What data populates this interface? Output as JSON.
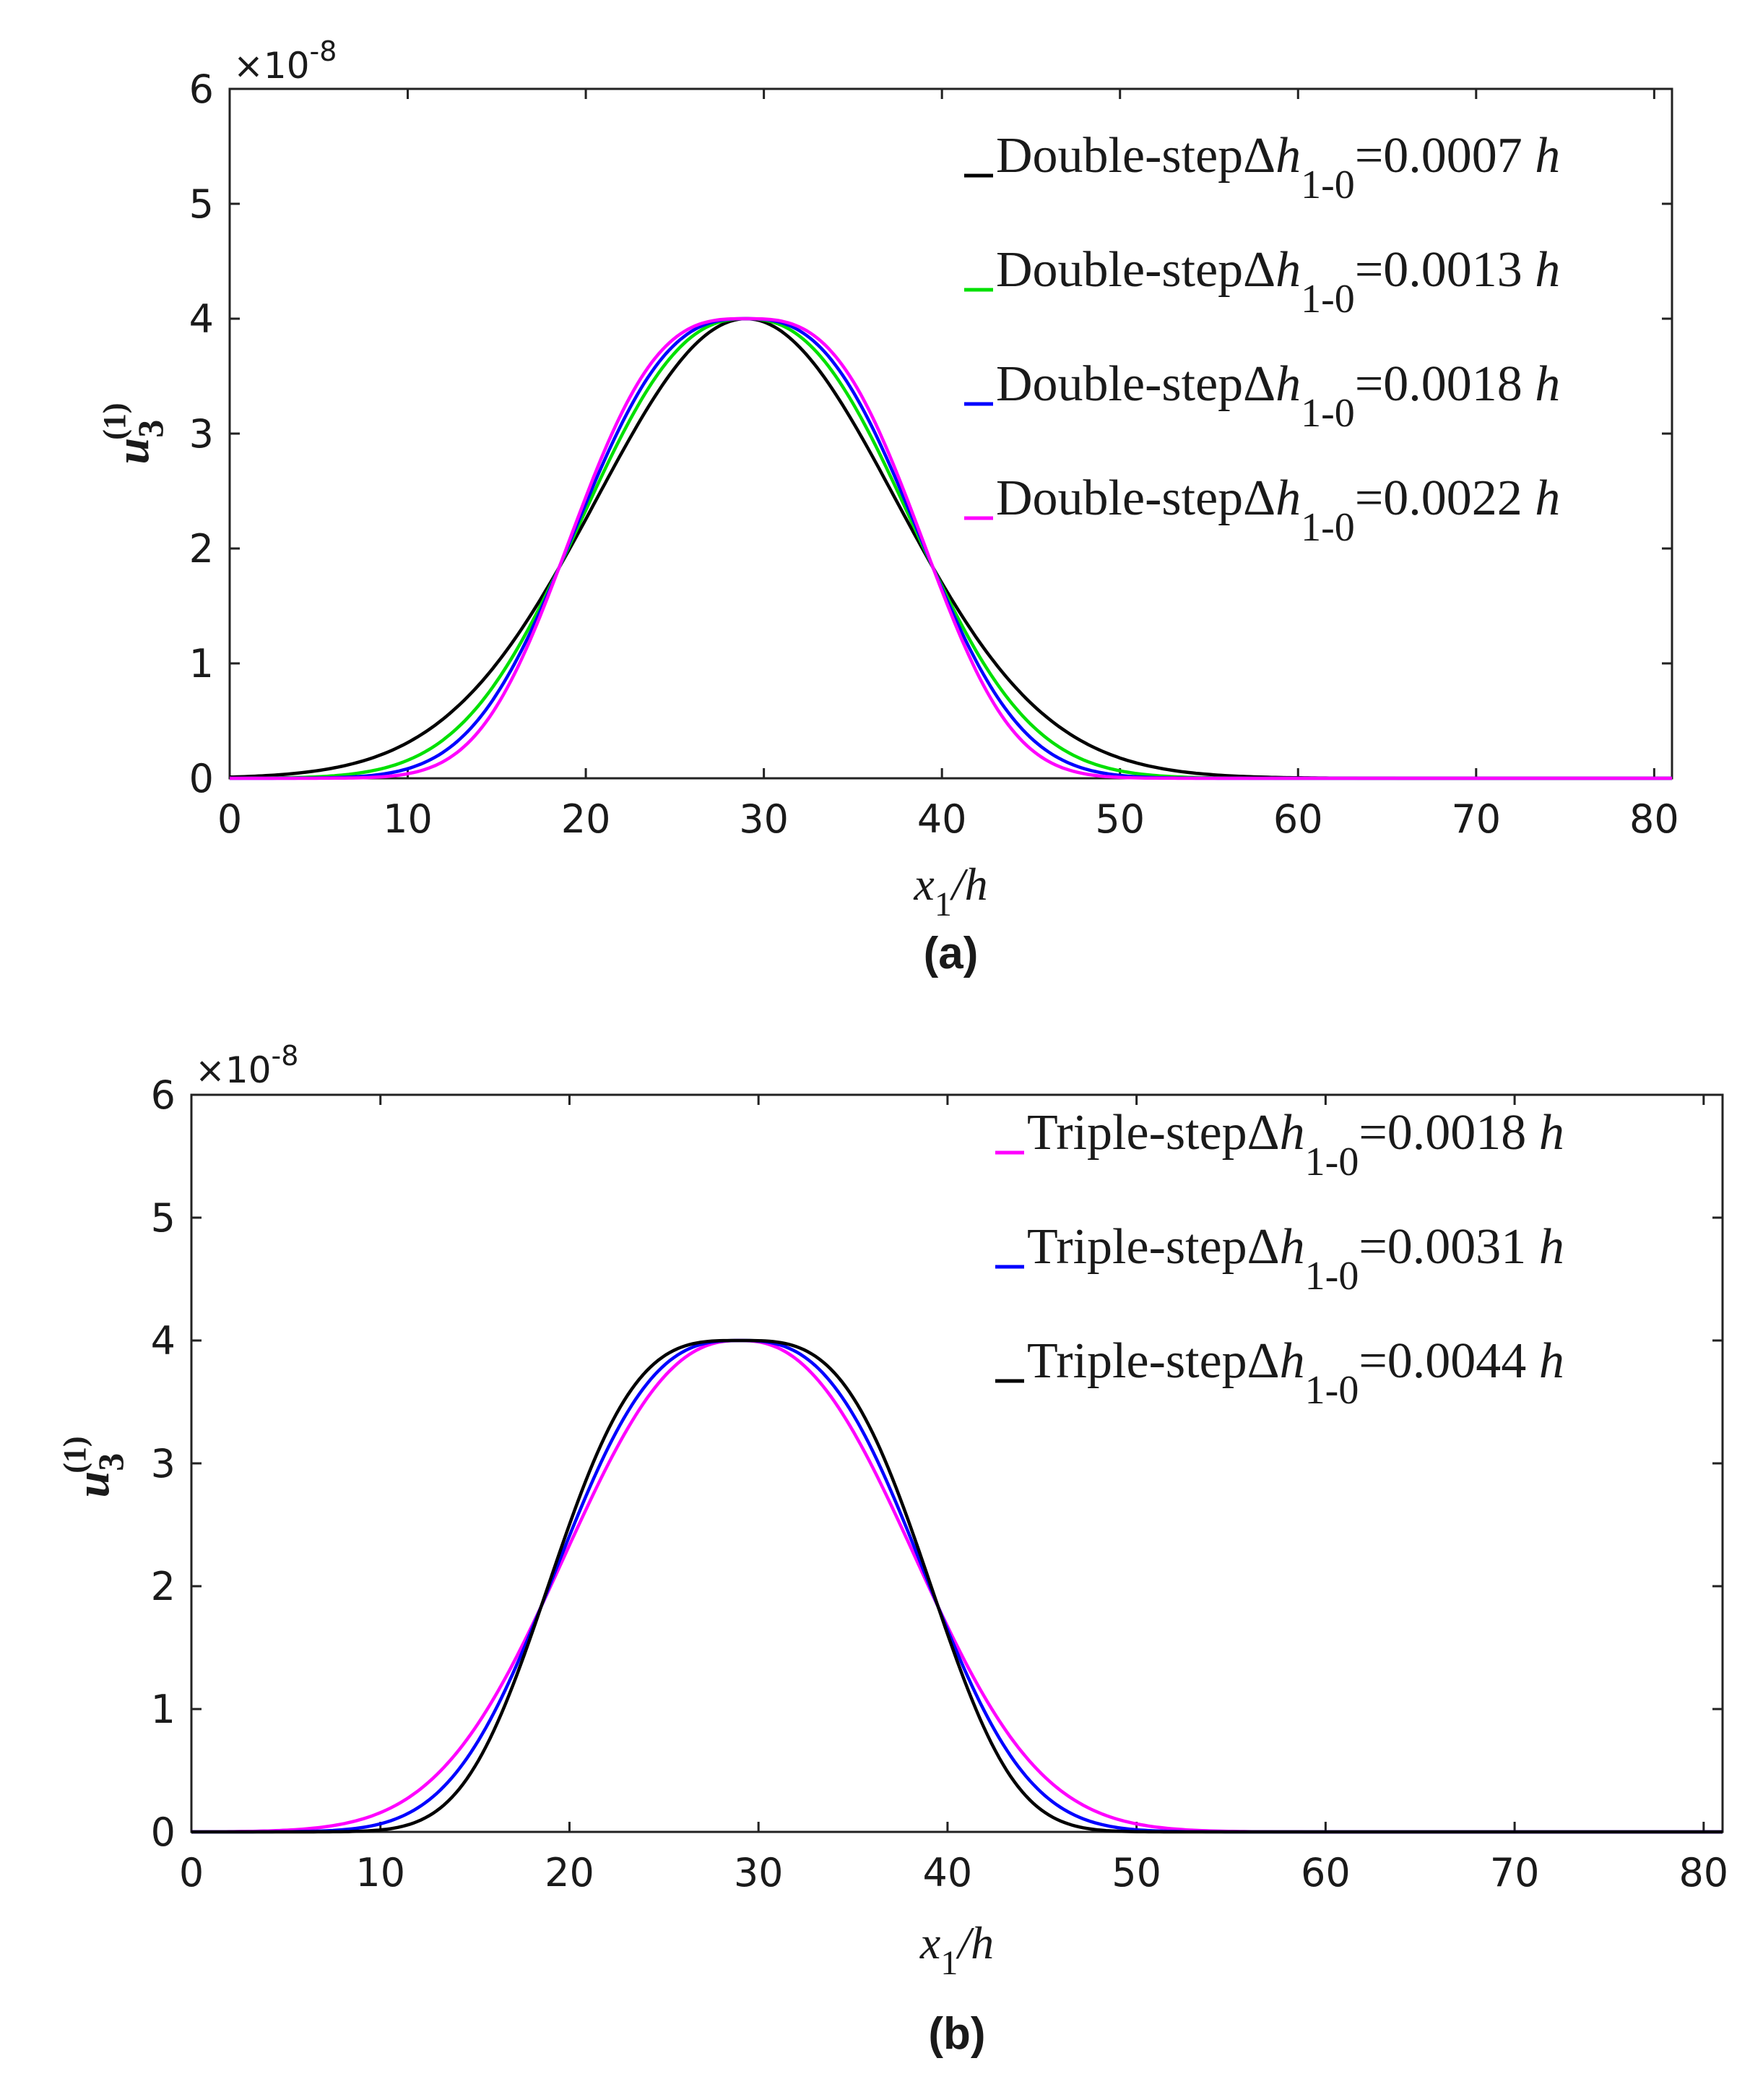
{
  "chart_data": [
    {
      "type": "line",
      "panel_label": "(a)",
      "xlabel": "x1/h",
      "xlabel_parts": {
        "var": "x",
        "sub": "1",
        "rest": "/h"
      },
      "ylabel": "u3(1)",
      "ylabel_parts": {
        "var": "u",
        "sub": "3",
        "sup": "(1)"
      },
      "multiplier": {
        "base": "×10",
        "exp": "-8"
      },
      "xlim": [
        0,
        81
      ],
      "ylim": [
        0,
        6
      ],
      "xticks": [
        0,
        10,
        20,
        30,
        40,
        50,
        60,
        70,
        80
      ],
      "yticks": [
        0,
        1,
        2,
        3,
        4,
        5,
        6
      ],
      "grid": false,
      "legend_position": "top-right",
      "peak_x": 29,
      "peak_y": 4,
      "series": [
        {
          "name": "Double-stepΔh1-0=0.0007 h",
          "prefix": "Double-step",
          "sub": "1-0",
          "value": "=0.0007",
          "unit": "h",
          "color": "#000000",
          "shape": 2.0
        },
        {
          "name": "Double-stepΔh1-0=0.0013 h",
          "prefix": "Double-step",
          "sub": "1-0",
          "value": "=0.0013",
          "unit": "h",
          "color": "#00e000",
          "shape": 2.4
        },
        {
          "name": "Double-stepΔh1-0=0.0018 h",
          "prefix": "Double-step",
          "sub": "1-0",
          "value": "=0.0018",
          "unit": "h",
          "color": "#0000ff",
          "shape": 2.7
        },
        {
          "name": "Double-stepΔh1-0=0.0022 h",
          "prefix": "Double-step",
          "sub": "1-0",
          "value": "=0.0022",
          "unit": "h",
          "color": "#ff00ff",
          "shape": 3.0
        }
      ]
    },
    {
      "type": "line",
      "panel_label": "(b)",
      "xlabel": "x1/h",
      "xlabel_parts": {
        "var": "x",
        "sub": "1",
        "rest": "/h"
      },
      "ylabel": "u3(1)",
      "ylabel_parts": {
        "var": "u",
        "sub": "3",
        "sup": "(1)"
      },
      "multiplier": {
        "base": "×10",
        "exp": "-8"
      },
      "xlim": [
        0,
        81
      ],
      "ylim": [
        0,
        6
      ],
      "xticks": [
        0,
        10,
        20,
        30,
        40,
        50,
        60,
        70,
        80
      ],
      "yticks": [
        0,
        1,
        2,
        3,
        4,
        5,
        6
      ],
      "grid": false,
      "legend_position": "top-right",
      "peak_x": 29,
      "peak_y": 4,
      "series": [
        {
          "name": "Triple-stepΔh1-0=0.0018 h",
          "prefix": "Triple-step",
          "sub": "1-0",
          "value": "=0.0018",
          "unit": "h",
          "color": "#ff00ff",
          "shape": 2.4
        },
        {
          "name": "Triple-stepΔh1-0=0.0031 h",
          "prefix": "Triple-step",
          "sub": "1-0",
          "value": "=0.0031",
          "unit": "h",
          "color": "#0000ff",
          "shape": 2.8
        },
        {
          "name": "Triple-stepΔh1-0=0.0044 h",
          "prefix": "Triple-step",
          "sub": "1-0",
          "value": "=0.0044",
          "unit": "h",
          "color": "#000000",
          "shape": 3.3
        }
      ]
    }
  ]
}
